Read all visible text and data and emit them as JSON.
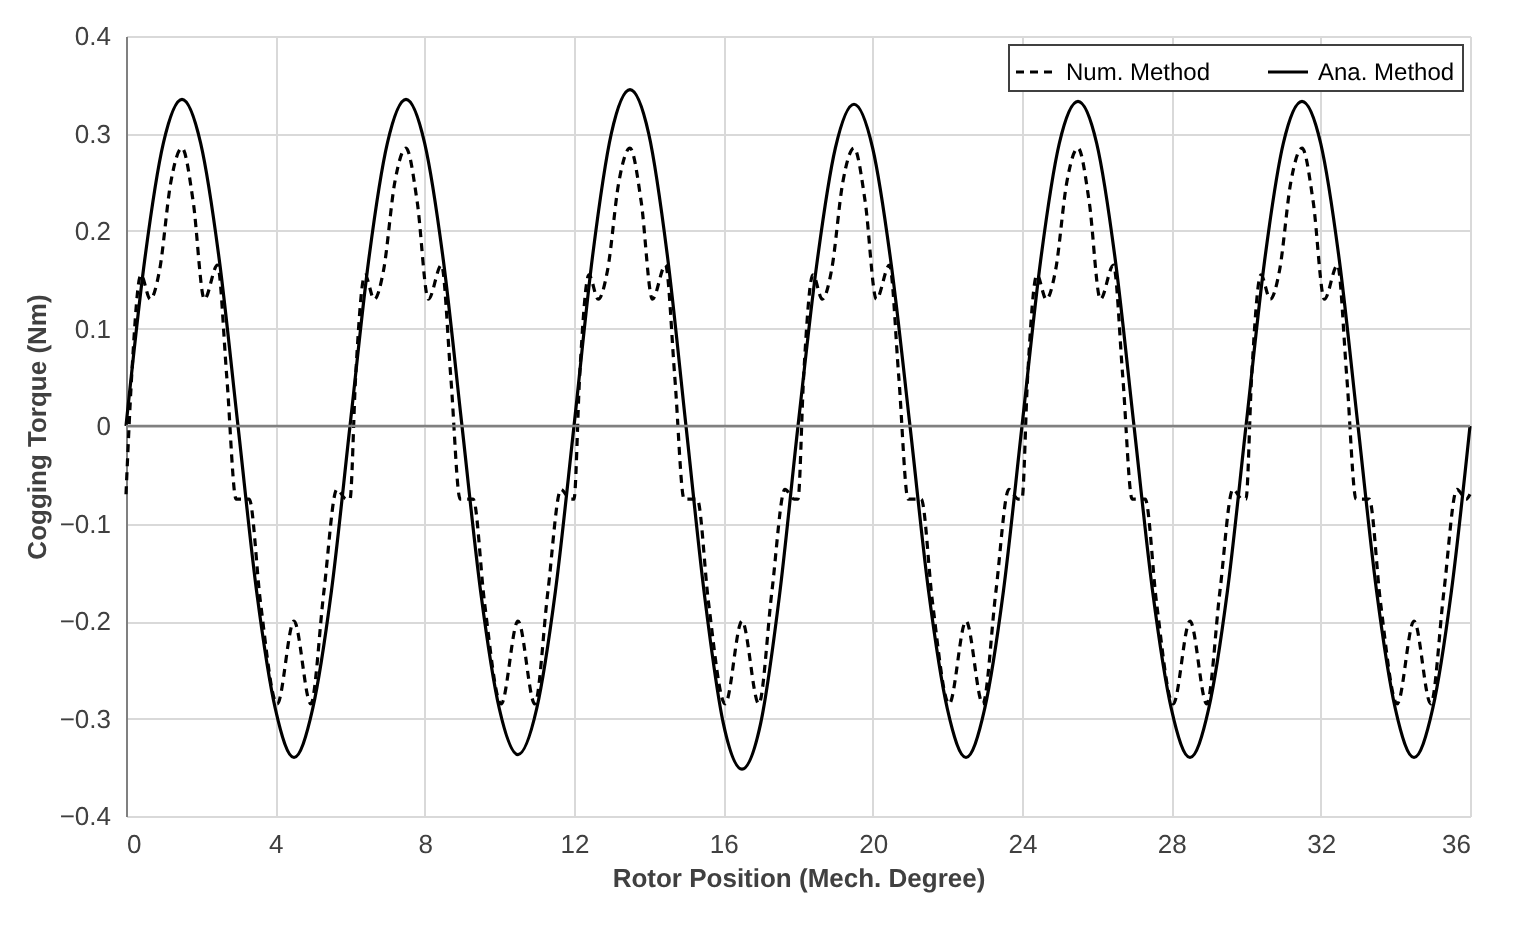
{
  "chart_data": {
    "type": "line",
    "xlabel": "Rotor Position (Mech. Degree)",
    "ylabel": "Cogging Torque (Nm)",
    "xlim": [
      0,
      36
    ],
    "xticks": [
      0,
      4,
      8,
      12,
      16,
      20,
      24,
      28,
      32,
      36
    ],
    "ylim": [
      -0.4,
      0.4
    ],
    "yticks": [
      -0.4,
      -0.3,
      -0.2,
      -0.1,
      0,
      0.1,
      0.2,
      0.3,
      0.4
    ],
    "grid": true,
    "legend": "top right",
    "marker": "none",
    "ref_lines": [
      {
        "axis": "y",
        "value": 0,
        "color": "#808080"
      }
    ],
    "series": [
      {
        "name": "Num. Method",
        "color": "#000000",
        "line_style": "dashed",
        "x": [
          0,
          0.15,
          0.4,
          0.65,
          0.9,
          1.2,
          1.5,
          1.8,
          2.1,
          2.45,
          2.7,
          2.95,
          3.3,
          3.6,
          4.05,
          4.5,
          4.95,
          5.3,
          5.65,
          5.9,
          6,
          6.15,
          6.4,
          6.65,
          6.9,
          7.2,
          7.5,
          7.8,
          8.1,
          8.45,
          8.7,
          8.95,
          9.3,
          9.6,
          10.05,
          10.5,
          10.95,
          11.3,
          11.65,
          11.9,
          12,
          12.15,
          12.4,
          12.65,
          12.9,
          13.2,
          13.5,
          13.8,
          14.1,
          14.45,
          14.7,
          14.95,
          15.3,
          15.6,
          16.05,
          16.5,
          16.95,
          17.3,
          17.65,
          17.9,
          18,
          18.15,
          18.4,
          18.65,
          18.9,
          19.2,
          19.5,
          19.8,
          20.1,
          20.45,
          20.7,
          20.95,
          21.3,
          21.6,
          22.05,
          22.5,
          22.95,
          23.3,
          23.65,
          23.9,
          24,
          24.15,
          24.4,
          24.65,
          24.9,
          25.2,
          25.5,
          25.8,
          26.1,
          26.45,
          26.7,
          26.95,
          27.3,
          27.6,
          28.05,
          28.5,
          28.95,
          29.3,
          29.65,
          29.9,
          30,
          30.15,
          30.4,
          30.65,
          30.9,
          31.2,
          31.5,
          31.8,
          32.1,
          32.45,
          32.7,
          32.95,
          33.3,
          33.6,
          34.05,
          34.5,
          34.95,
          35.3,
          35.65,
          35.9,
          36
        ],
        "values": [
          -0.07,
          0.05,
          0.155,
          0.13,
          0.16,
          0.25,
          0.285,
          0.23,
          0.13,
          0.165,
          0.05,
          -0.075,
          -0.075,
          -0.18,
          -0.285,
          -0.2,
          -0.285,
          -0.17,
          -0.065,
          -0.075,
          -0.075,
          0.05,
          0.155,
          0.13,
          0.16,
          0.25,
          0.285,
          0.23,
          0.13,
          0.165,
          0.05,
          -0.075,
          -0.075,
          -0.18,
          -0.285,
          -0.2,
          -0.285,
          -0.17,
          -0.065,
          -0.075,
          -0.075,
          0.05,
          0.155,
          0.13,
          0.16,
          0.25,
          0.285,
          0.23,
          0.13,
          0.165,
          0.05,
          -0.075,
          -0.075,
          -0.18,
          -0.285,
          -0.2,
          -0.285,
          -0.17,
          -0.065,
          -0.075,
          -0.075,
          0.05,
          0.155,
          0.13,
          0.16,
          0.25,
          0.285,
          0.23,
          0.13,
          0.165,
          0.05,
          -0.075,
          -0.075,
          -0.18,
          -0.285,
          -0.2,
          -0.285,
          -0.17,
          -0.065,
          -0.075,
          -0.075,
          0.05,
          0.155,
          0.13,
          0.16,
          0.25,
          0.285,
          0.23,
          0.13,
          0.165,
          0.05,
          -0.075,
          -0.075,
          -0.18,
          -0.285,
          -0.2,
          -0.285,
          -0.17,
          -0.065,
          -0.075,
          -0.075,
          0.05,
          0.155,
          0.13,
          0.16,
          0.25,
          0.285,
          0.23,
          0.13,
          0.165,
          0.05,
          -0.075,
          -0.075,
          -0.18,
          -0.285,
          -0.2,
          -0.285,
          -0.17,
          -0.065,
          -0.075,
          -0.07
        ]
      },
      {
        "name": "Ana. Method",
        "color": "#000000",
        "line_style": "solid",
        "x": [
          0,
          0.5,
          1,
          1.5,
          2,
          2.5,
          3,
          3.5,
          4,
          4.5,
          5,
          5.5,
          6,
          6.5,
          7,
          7.5,
          8,
          8.5,
          9,
          9.5,
          10,
          10.5,
          11,
          11.5,
          12,
          12.5,
          13,
          13.5,
          14,
          14.5,
          15,
          15.5,
          16,
          16.5,
          17,
          17.5,
          18,
          18.5,
          19,
          19.5,
          20,
          20.5,
          21,
          21.5,
          22,
          22.5,
          23,
          23.5,
          24,
          24.5,
          25,
          25.5,
          26,
          26.5,
          27,
          27.5,
          28,
          28.5,
          29,
          29.5,
          30,
          30.5,
          31,
          31.5,
          32,
          32.5,
          33,
          33.5,
          34,
          34.5,
          35,
          35.5,
          36
        ],
        "values": [
          0,
          0.17,
          0.29,
          0.335,
          0.29,
          0.17,
          0,
          -0.17,
          -0.29,
          -0.34,
          -0.29,
          -0.17,
          0,
          0.17,
          0.29,
          0.335,
          0.29,
          0.17,
          0,
          -0.17,
          -0.29,
          -0.337,
          -0.29,
          -0.17,
          0,
          0.175,
          0.3,
          0.345,
          0.3,
          0.175,
          0,
          -0.175,
          -0.305,
          -0.352,
          -0.305,
          -0.175,
          0,
          0.165,
          0.285,
          0.33,
          0.285,
          0.165,
          0,
          -0.17,
          -0.29,
          -0.34,
          -0.29,
          -0.17,
          0,
          0.17,
          0.29,
          0.333,
          0.29,
          0.17,
          0,
          -0.17,
          -0.29,
          -0.34,
          -0.29,
          -0.17,
          0,
          0.17,
          0.29,
          0.333,
          0.29,
          0.17,
          0,
          -0.17,
          -0.29,
          -0.34,
          -0.29,
          -0.17,
          0
        ]
      }
    ]
  }
}
